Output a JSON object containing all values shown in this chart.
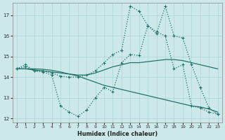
{
  "xlabel": "Humidex (Indice chaleur)",
  "background_color": "#cce8e8",
  "grid_color": "#add4d4",
  "line_color": "#1a6e65",
  "xlim": [
    -0.5,
    23.5
  ],
  "ylim": [
    11.8,
    17.6
  ],
  "xticks": [
    0,
    1,
    2,
    3,
    4,
    5,
    6,
    7,
    8,
    9,
    10,
    11,
    12,
    13,
    14,
    15,
    16,
    17,
    18,
    19,
    20,
    21,
    22,
    23
  ],
  "yticks": [
    12,
    13,
    14,
    15,
    16,
    17
  ],
  "lines": [
    {
      "y": [
        14.4,
        14.6,
        14.3,
        14.25,
        14.1,
        12.6,
        12.3,
        12.1,
        12.4,
        13.0,
        13.5,
        13.3,
        14.7,
        15.1,
        15.05,
        16.5,
        16.2,
        16.0,
        14.4,
        14.6,
        12.6,
        12.5,
        12.3,
        12.2
      ],
      "style": "dotted",
      "marker": true
    },
    {
      "y": [
        14.4,
        14.4,
        14.35,
        14.3,
        14.25,
        14.2,
        14.15,
        14.1,
        14.1,
        14.2,
        14.35,
        14.5,
        14.6,
        14.7,
        14.7,
        14.75,
        14.8,
        14.85,
        14.85,
        14.8,
        14.7,
        14.6,
        14.5,
        14.4
      ],
      "style": "solid",
      "marker": false
    },
    {
      "y": [
        14.4,
        14.5,
        14.3,
        14.3,
        14.2,
        14.05,
        14.0,
        14.0,
        14.1,
        14.3,
        14.7,
        15.1,
        15.3,
        17.45,
        17.2,
        16.5,
        16.1,
        17.45,
        16.0,
        15.9,
        14.6,
        13.5,
        12.5,
        12.2
      ],
      "style": "dotted",
      "marker": true
    },
    {
      "y": [
        14.4,
        14.4,
        14.4,
        14.38,
        14.33,
        14.25,
        14.15,
        14.05,
        13.9,
        13.75,
        13.6,
        13.5,
        13.4,
        13.3,
        13.2,
        13.1,
        13.0,
        12.9,
        12.8,
        12.7,
        12.6,
        12.55,
        12.45,
        12.3
      ],
      "style": "solid",
      "marker": false
    }
  ]
}
